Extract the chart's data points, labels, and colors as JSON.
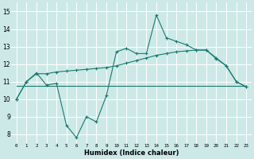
{
  "x_values": [
    0,
    1,
    2,
    3,
    4,
    5,
    6,
    7,
    8,
    9,
    10,
    11,
    12,
    13,
    14,
    15,
    16,
    17,
    18,
    19,
    20,
    21,
    22,
    23
  ],
  "line1_y": [
    10.0,
    11.0,
    11.5,
    10.8,
    10.9,
    8.5,
    7.8,
    9.0,
    8.7,
    10.2,
    12.7,
    12.9,
    12.6,
    12.6,
    14.8,
    13.5,
    13.3,
    13.1,
    12.8,
    12.8,
    12.3,
    11.9,
    11.0,
    10.7
  ],
  "line2_y": [
    10.0,
    11.0,
    11.45,
    11.45,
    11.55,
    11.6,
    11.65,
    11.7,
    11.75,
    11.8,
    11.9,
    12.05,
    12.2,
    12.35,
    12.5,
    12.6,
    12.7,
    12.75,
    12.8,
    12.8,
    12.35,
    11.9,
    11.0,
    10.7
  ],
  "line3_y": [
    10.75,
    10.75,
    10.75,
    10.75,
    10.75,
    10.75,
    10.75,
    10.75,
    10.75,
    10.75,
    10.75,
    10.75,
    10.75,
    10.75,
    10.75,
    10.75,
    10.75,
    10.75,
    10.75,
    10.75,
    10.75,
    10.75,
    10.75,
    10.75
  ],
  "line_color": "#1a7a6e",
  "bg_color": "#cce9e7",
  "grid_color": "#ffffff",
  "xlabel": "Humidex (Indice chaleur)",
  "xlim": [
    -0.5,
    23.5
  ],
  "ylim": [
    7.5,
    15.5
  ],
  "yticks": [
    8,
    9,
    10,
    11,
    12,
    13,
    14,
    15
  ]
}
